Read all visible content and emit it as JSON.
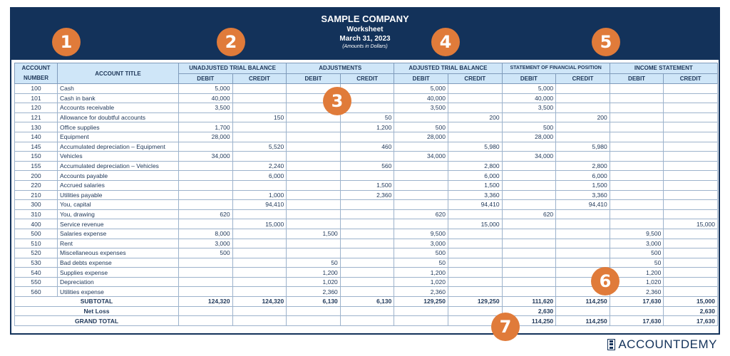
{
  "header": {
    "company": "SAMPLE COMPANY",
    "title": "Worksheet",
    "date": "March 31, 2023",
    "note": "(Amounts in Dollars)"
  },
  "columns": {
    "account_number": "ACCOUNT NUMBER",
    "account_title": "ACCOUNT TITLE",
    "groups": [
      "UNADJUSTED TRIAL BALANCE",
      "ADJUSTMENTS",
      "ADJUSTED TRIAL BALANCE",
      "STATEMENT OF FINANCIAL POSITION",
      "INCOME STATEMENT"
    ],
    "debit": "DEBIT",
    "credit": "CREDIT"
  },
  "rows": [
    [
      "100",
      "Cash",
      "5,000",
      "",
      "",
      "",
      "5,000",
      "",
      "5,000",
      "",
      "",
      ""
    ],
    [
      "101",
      "Cash in bank",
      "40,000",
      "",
      "",
      "",
      "40,000",
      "",
      "40,000",
      "",
      "",
      ""
    ],
    [
      "120",
      "Accounts receivable",
      "3,500",
      "",
      "",
      "",
      "3,500",
      "",
      "3,500",
      "",
      "",
      ""
    ],
    [
      "121",
      "Allowance for doubtful accounts",
      "",
      "150",
      "",
      "50",
      "",
      "200",
      "",
      "200",
      "",
      ""
    ],
    [
      "130",
      "Office supplies",
      "1,700",
      "",
      "",
      "1,200",
      "500",
      "",
      "500",
      "",
      "",
      ""
    ],
    [
      "140",
      "Equipment",
      "28,000",
      "",
      "",
      "",
      "28,000",
      "",
      "28,000",
      "",
      "",
      ""
    ],
    [
      "145",
      "Accumulated depreciation – Equipment",
      "",
      "5,520",
      "",
      "460",
      "",
      "5,980",
      "",
      "5,980",
      "",
      ""
    ],
    [
      "150",
      "Vehicles",
      "34,000",
      "",
      "",
      "",
      "34,000",
      "",
      "34,000",
      "",
      "",
      ""
    ],
    [
      "155",
      "Accumulated depreciation – Vehicles",
      "",
      "2,240",
      "",
      "560",
      "",
      "2,800",
      "",
      "2,800",
      "",
      ""
    ],
    [
      "200",
      "Accounts payable",
      "",
      "6,000",
      "",
      "",
      "",
      "6,000",
      "",
      "6,000",
      "",
      ""
    ],
    [
      "220",
      "Accrued salaries",
      "",
      "",
      "",
      "1,500",
      "",
      "1,500",
      "",
      "1,500",
      "",
      ""
    ],
    [
      "210",
      "Utilities payable",
      "",
      "1,000",
      "",
      "2,360",
      "",
      "3,360",
      "",
      "3,360",
      "",
      ""
    ],
    [
      "300",
      "You, capital",
      "",
      "94,410",
      "",
      "",
      "",
      "94,410",
      "",
      "94,410",
      "",
      ""
    ],
    [
      "310",
      "You, drawing",
      "620",
      "",
      "",
      "",
      "620",
      "",
      "620",
      "",
      "",
      ""
    ],
    [
      "400",
      "Service revenue",
      "",
      "15,000",
      "",
      "",
      "",
      "15,000",
      "",
      "",
      "",
      "15,000"
    ],
    [
      "500",
      "Salaries expense",
      "8,000",
      "",
      "1,500",
      "",
      "9,500",
      "",
      "",
      "",
      "9,500",
      ""
    ],
    [
      "510",
      "Rent",
      "3,000",
      "",
      "",
      "",
      "3,000",
      "",
      "",
      "",
      "3,000",
      ""
    ],
    [
      "520",
      "Miscellaneous expenses",
      "500",
      "",
      "",
      "",
      "500",
      "",
      "",
      "",
      "500",
      ""
    ],
    [
      "530",
      "Bad debts expense",
      "",
      "",
      "50",
      "",
      "50",
      "",
      "",
      "",
      "50",
      ""
    ],
    [
      "540",
      "Supplies expense",
      "",
      "",
      "1,200",
      "",
      "1,200",
      "",
      "",
      "",
      "1,200",
      ""
    ],
    [
      "550",
      "Depreciation",
      "",
      "",
      "1,020",
      "",
      "1,020",
      "",
      "",
      "",
      "1,020",
      ""
    ],
    [
      "560",
      "Utilities expense",
      "",
      "",
      "2,360",
      "",
      "2,360",
      "",
      "",
      "",
      "2,360",
      ""
    ]
  ],
  "totals": [
    {
      "label": "SUBTOTAL",
      "values": [
        "124,320",
        "124,320",
        "6,130",
        "6,130",
        "129,250",
        "129,250",
        "111,620",
        "114,250",
        "17,630",
        "15,000"
      ]
    },
    {
      "label": "Net Loss",
      "values": [
        "",
        "",
        "",
        "",
        "",
        "",
        "2,630",
        "",
        "",
        "2,630"
      ]
    },
    {
      "label": "GRAND TOTAL",
      "values": [
        "",
        "",
        "",
        "",
        "",
        "",
        "114,250",
        "114,250",
        "17,630",
        "17,630"
      ]
    }
  ],
  "badges": [
    "1",
    "2",
    "3",
    "4",
    "5",
    "6",
    "7"
  ],
  "badge_color": "#e07b3a",
  "header_color": "#13325a",
  "logo": "ACCOUNTDEMY"
}
